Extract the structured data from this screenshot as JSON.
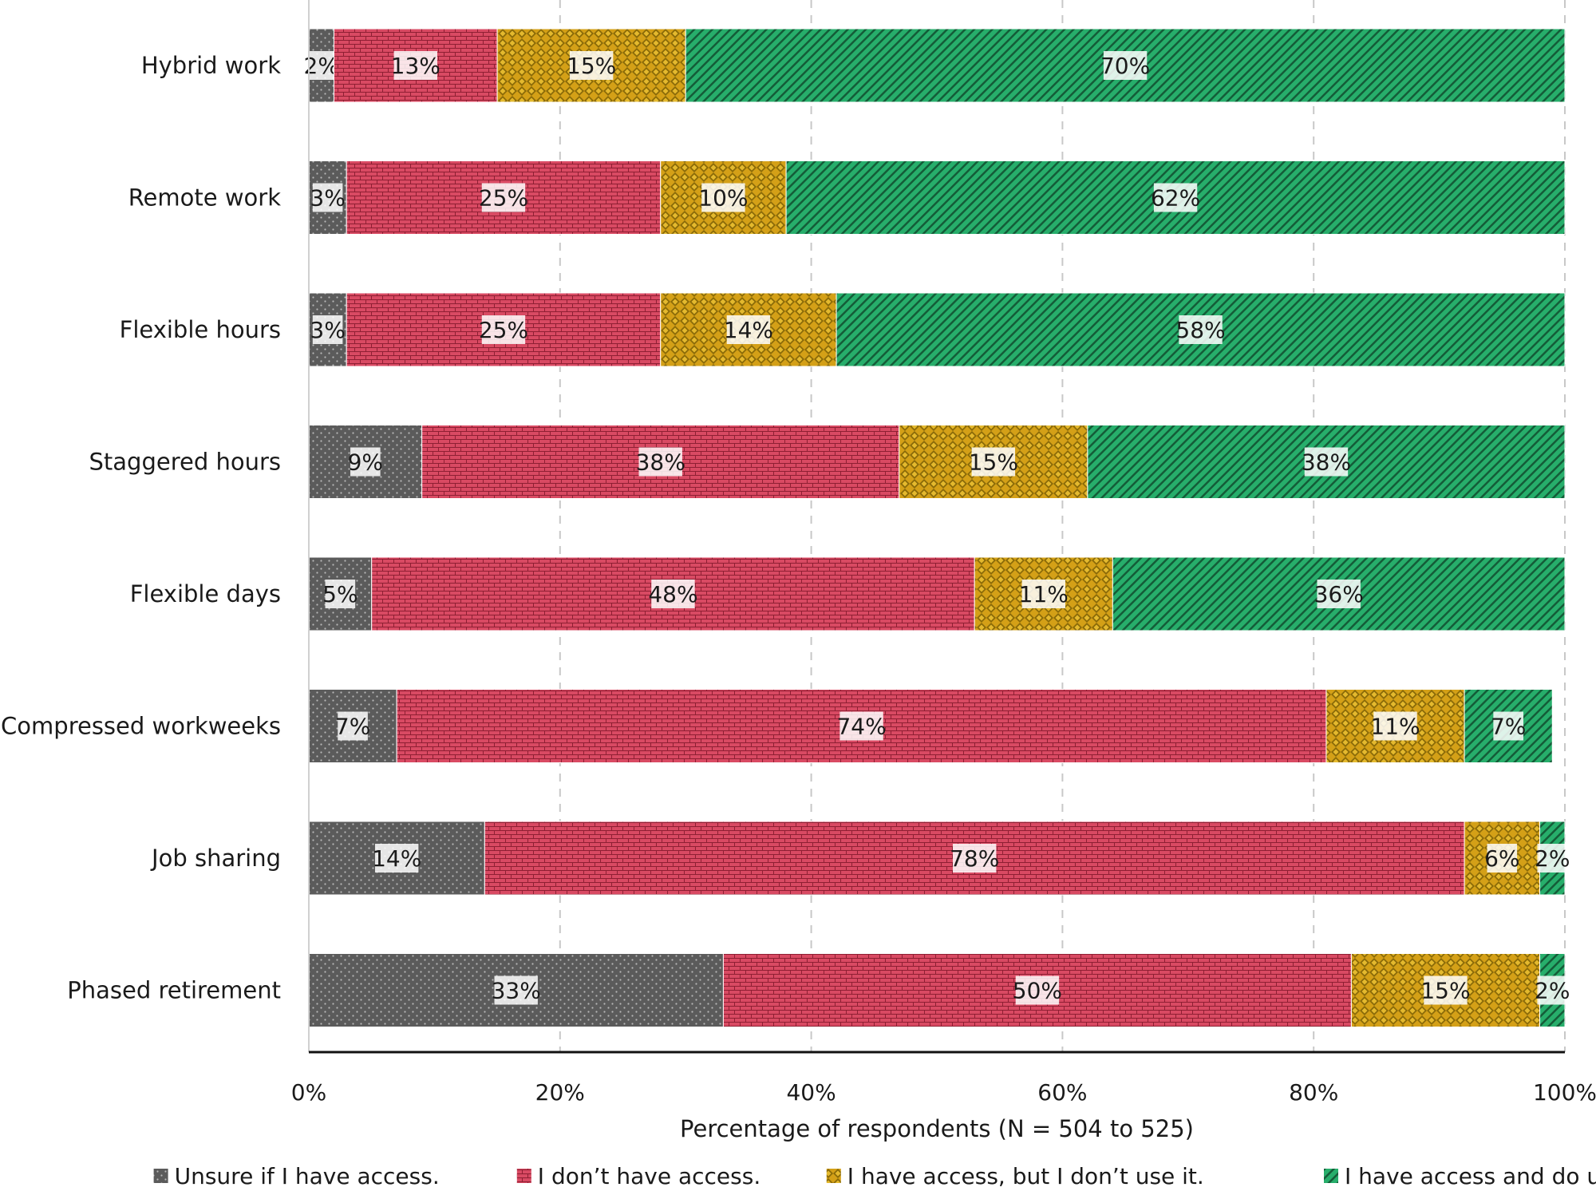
{
  "chart_data": {
    "type": "bar",
    "orientation": "horizontal",
    "stacked": true,
    "categories": [
      "Hybrid work",
      "Remote work",
      "Flexible hours",
      "Staggered hours",
      "Flexible days",
      "Compressed workweeks",
      "Job sharing",
      "Phased retirement"
    ],
    "series": [
      {
        "name": "Unsure if I have access.",
        "color": "#5b5b5b",
        "pattern": "dots",
        "values": [
          2,
          3,
          3,
          9,
          5,
          7,
          14,
          33
        ]
      },
      {
        "name": "I don’t have access.",
        "color": "#d94a63",
        "pattern": "bricks",
        "values": [
          13,
          25,
          25,
          38,
          48,
          74,
          78,
          50
        ]
      },
      {
        "name": "I have access, but I don’t use it.",
        "color": "#d4a017",
        "pattern": "checks",
        "values": [
          15,
          10,
          14,
          15,
          11,
          11,
          6,
          15
        ]
      },
      {
        "name": "I have access and do use it.",
        "color": "#27ae6b",
        "pattern": "stripes",
        "values": [
          70,
          62,
          58,
          38,
          36,
          7,
          2,
          2
        ]
      }
    ],
    "xlabel": "Percentage of respondents (N = 504 to 525)",
    "ylabel": "",
    "xlim": [
      0,
      100
    ],
    "xticks": [
      "0%",
      "20%",
      "40%",
      "60%",
      "80%",
      "100%"
    ],
    "value_suffix": "%",
    "grid": "vertical-dashed",
    "legend_position": "bottom"
  }
}
